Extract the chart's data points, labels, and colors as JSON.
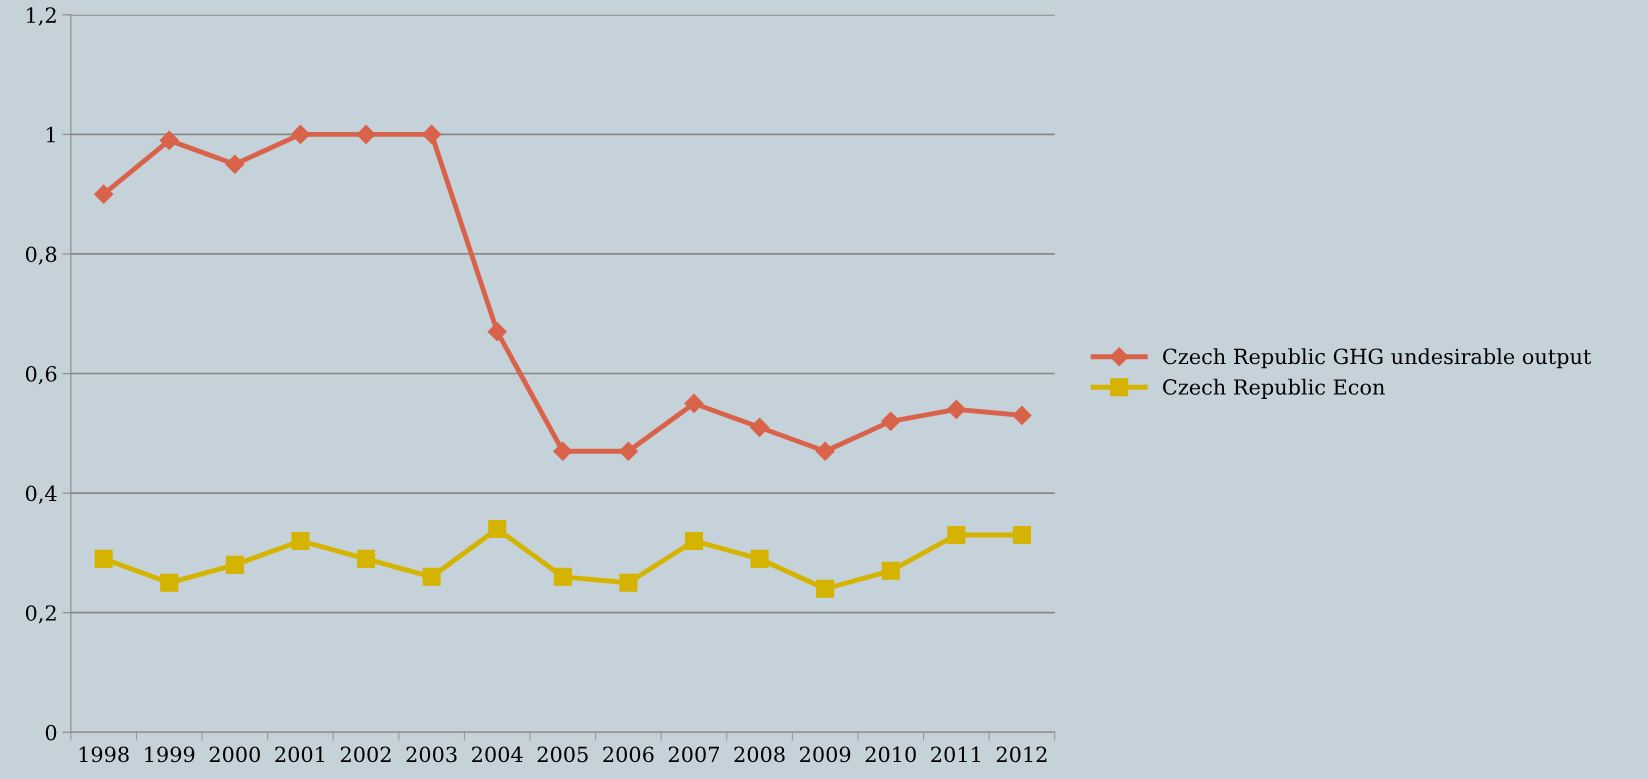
{
  "chart_data": {
    "type": "line",
    "categories": [
      "1998",
      "1999",
      "2000",
      "2001",
      "2002",
      "2003",
      "2004",
      "2005",
      "2006",
      "2007",
      "2008",
      "2009",
      "2010",
      "2011",
      "2012"
    ],
    "series": [
      {
        "name": "Czech Republic GHG undesirable output",
        "color": "#d9634a",
        "marker": "diamond",
        "values": [
          0.9,
          0.99,
          0.95,
          1.0,
          1.0,
          1.0,
          0.67,
          0.47,
          0.47,
          0.55,
          0.51,
          0.47,
          0.52,
          0.54,
          0.53
        ]
      },
      {
        "name": "Czech Republic Econ",
        "color": "#d4b400",
        "marker": "square",
        "values": [
          0.29,
          0.25,
          0.28,
          0.32,
          0.29,
          0.26,
          0.34,
          0.26,
          0.25,
          0.32,
          0.29,
          0.24,
          0.27,
          0.33,
          0.33
        ]
      }
    ],
    "ylim": [
      0,
      1.2
    ],
    "yticks": [
      0,
      {
        "value": 0.2,
        "label": "0,2"
      },
      {
        "value": 0.4,
        "label": "0,4"
      },
      {
        "value": 0.6,
        "label": "0,6"
      },
      {
        "value": 0.8,
        "label": "0,8"
      },
      1,
      {
        "value": 1.2,
        "label": "1,2"
      }
    ],
    "grid": "y",
    "legend": "right"
  }
}
